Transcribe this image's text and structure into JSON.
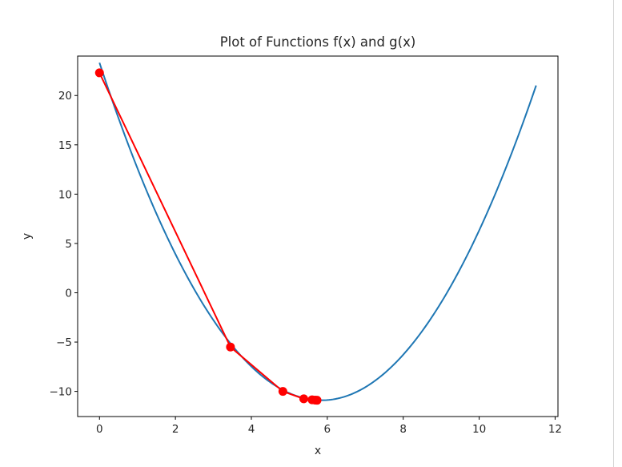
{
  "chart_data": {
    "type": "line",
    "title": "Plot of Functions f(x) and g(x)",
    "xlabel": "x",
    "ylabel": "y",
    "xlim": [
      -0.575,
      12.075
    ],
    "ylim": [
      -12.55,
      24.0
    ],
    "xticks": [
      0,
      2,
      4,
      6,
      8,
      10,
      12
    ],
    "yticks": [
      -10,
      -5,
      0,
      5,
      10,
      15,
      20
    ],
    "ytick_labels": [
      "−10",
      "−5",
      "0",
      "5",
      "10",
      "15",
      "20"
    ],
    "grid": false,
    "series": [
      {
        "color": "#1f77b4",
        "function": "(x - 5.85)^2 - 10.9",
        "x_range": [
          0,
          11.5
        ],
        "marker": "none"
      },
      {
        "color": "#ff0000",
        "marker": "circle",
        "x": [
          0,
          3.45,
          4.83,
          5.38,
          5.6,
          5.68,
          5.73
        ],
        "y": [
          22.3,
          -5.5,
          -10.0,
          -10.75,
          -10.85,
          -10.88,
          -10.9
        ]
      }
    ]
  }
}
